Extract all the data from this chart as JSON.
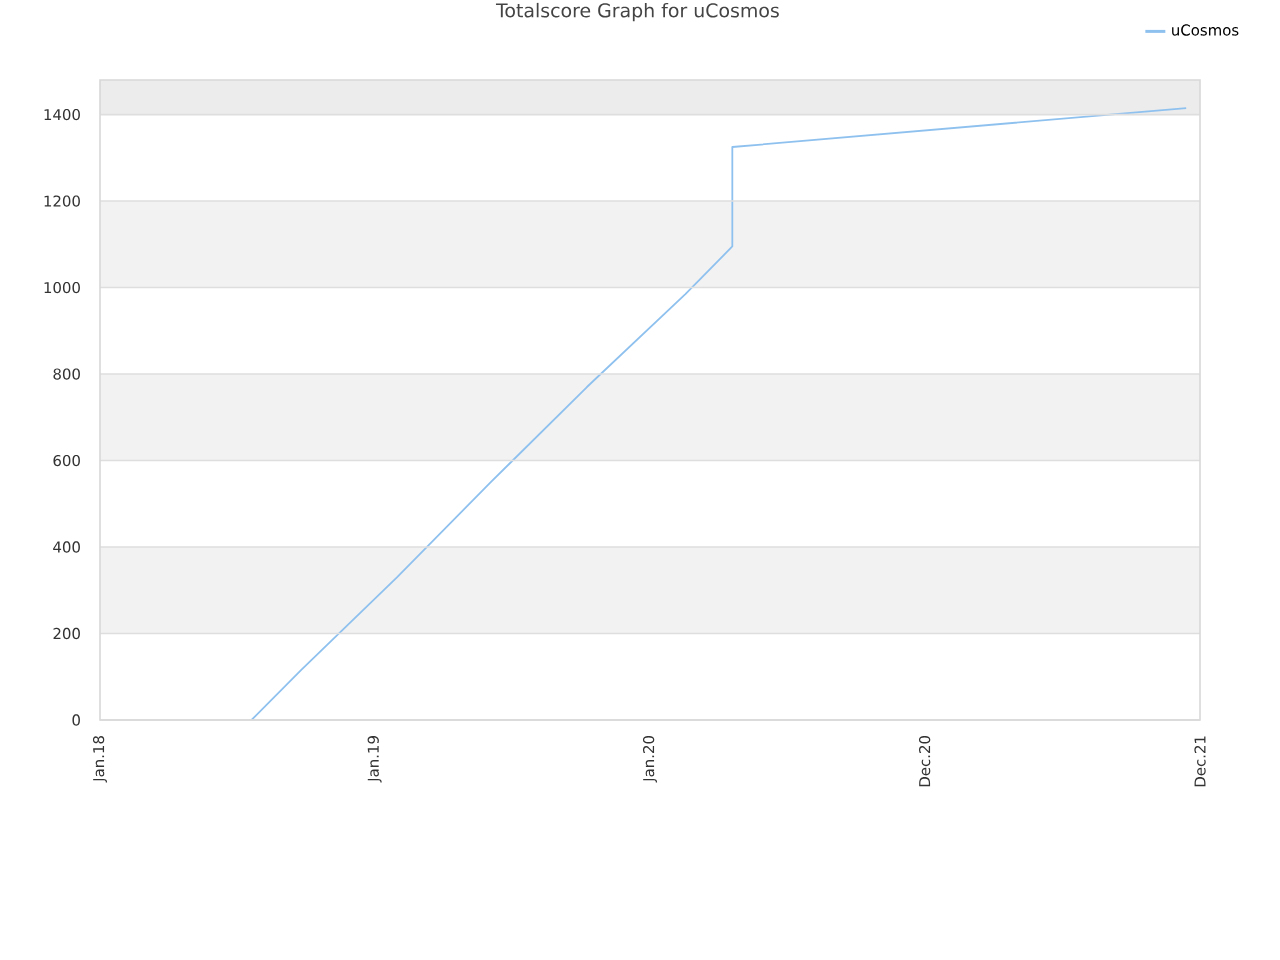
{
  "chart_data": {
    "type": "line",
    "title": "Totalscore Graph for uCosmos",
    "xlim": [
      "2018-01-20",
      "2021-12-20"
    ],
    "xticks": [
      {
        "value": "2018-01-20",
        "label": "Jan.18"
      },
      {
        "value": "2019-01-12",
        "label": "Jan.19"
      },
      {
        "value": "2020-01-05",
        "label": "Jan.20"
      },
      {
        "value": "2020-12-27",
        "label": "Dec.20"
      },
      {
        "value": "2021-12-20",
        "label": "Dec.21"
      }
    ],
    "ylim": [
      0,
      1480
    ],
    "yticks": [
      0,
      200,
      400,
      600,
      800,
      1000,
      1200,
      1400
    ],
    "series": [
      {
        "name": "uCosmos",
        "color": "#8fc1ef",
        "x": [
          "2018-08-05",
          "2018-10-08",
          "2019-02-10",
          "2019-06-12",
          "2019-10-15",
          "2020-02-20",
          "2020-04-21",
          "2020-04-21",
          "2021-12-02"
        ],
        "values": [
          0,
          115,
          330,
          550,
          770,
          985,
          1095,
          1325,
          1415
        ]
      }
    ],
    "bands": [
      {
        "axis": "y",
        "from": 200,
        "to": 400,
        "color": "#f2f2f2"
      },
      {
        "axis": "y",
        "from": 600,
        "to": 800,
        "color": "#f2f2f2"
      },
      {
        "axis": "y",
        "from": 1000,
        "to": 1200,
        "color": "#f2f2f2"
      },
      {
        "axis": "y",
        "from": 1400,
        "to": 1480,
        "color": "#ececec"
      }
    ],
    "grid": "y",
    "legend": "top right"
  }
}
